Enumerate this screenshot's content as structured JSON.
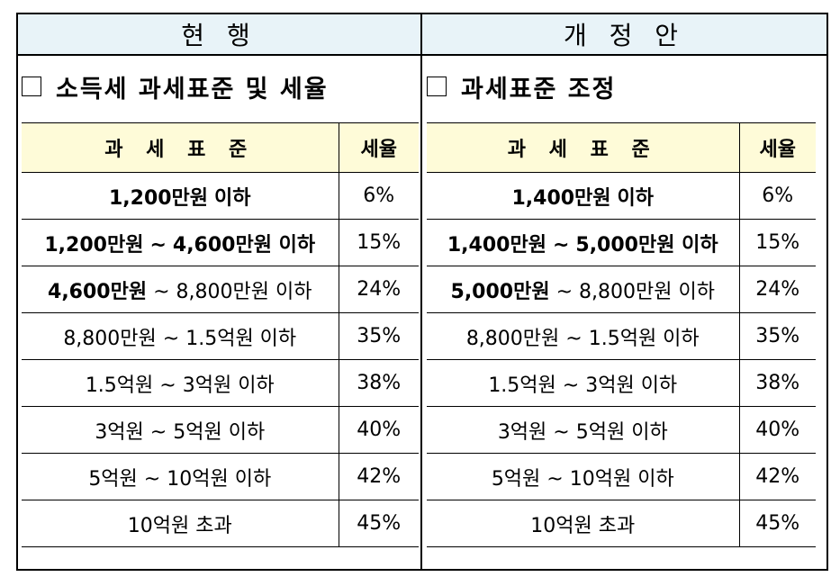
{
  "current": {
    "header": "현  행",
    "section_title": "소득세 과세표준 및 세율",
    "table": {
      "col_base": "과 세 표 준",
      "col_rate": "세율",
      "rows": [
        {
          "from": "1,200만원",
          "sep": "",
          "to": "이하",
          "rate": "6%",
          "bold": "full"
        },
        {
          "from": "1,200만원",
          "sep": "~",
          "to": "4,600만원 이하",
          "rate": "15%",
          "bold": "full"
        },
        {
          "from": "4,600만원",
          "sep": "~",
          "to": "8,800만원 이하",
          "rate": "24%",
          "bold": "first"
        },
        {
          "from": "8,800만원",
          "sep": "~",
          "to": "1.5억원 이하",
          "rate": "35%",
          "bold": "none"
        },
        {
          "from": "1.5억원",
          "sep": "~",
          "to": "3억원 이하",
          "rate": "38%",
          "bold": "none"
        },
        {
          "from": "3억원",
          "sep": "~",
          "to": "5억원 이하",
          "rate": "40%",
          "bold": "none"
        },
        {
          "from": "5억원",
          "sep": "~",
          "to": "10억원 이하",
          "rate": "42%",
          "bold": "none"
        },
        {
          "from": "10억원",
          "sep": "",
          "to": "초과",
          "rate": "45%",
          "bold": "none"
        }
      ]
    }
  },
  "proposed": {
    "header": "개  정  안",
    "section_title": "과세표준 조정",
    "table": {
      "col_base": "과 세 표 준",
      "col_rate": "세율",
      "rows": [
        {
          "from": "1,400만원",
          "sep": "",
          "to": "이하",
          "rate": "6%",
          "bold": "full"
        },
        {
          "from": "1,400만원",
          "sep": "~",
          "to": "5,000만원 이하",
          "rate": "15%",
          "bold": "full"
        },
        {
          "from": "5,000만원",
          "sep": "~",
          "to": "8,800만원 이하",
          "rate": "24%",
          "bold": "first"
        },
        {
          "from": "8,800만원",
          "sep": "~",
          "to": "1.5억원 이하",
          "rate": "35%",
          "bold": "none"
        },
        {
          "from": "1.5억원",
          "sep": "~",
          "to": "3억원 이하",
          "rate": "38%",
          "bold": "none"
        },
        {
          "from": "3억원",
          "sep": "~",
          "to": "5억원 이하",
          "rate": "40%",
          "bold": "none"
        },
        {
          "from": "5억원",
          "sep": "~",
          "to": "10억원 이하",
          "rate": "42%",
          "bold": "none"
        },
        {
          "from": "10억원",
          "sep": "",
          "to": "초과",
          "rate": "45%",
          "bold": "none"
        }
      ]
    }
  }
}
